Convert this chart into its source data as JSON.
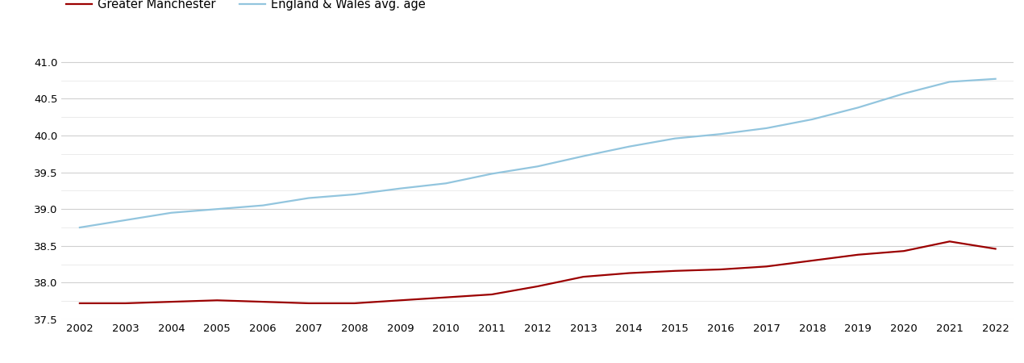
{
  "years": [
    2002,
    2003,
    2004,
    2005,
    2006,
    2007,
    2008,
    2009,
    2010,
    2011,
    2012,
    2013,
    2014,
    2015,
    2016,
    2017,
    2018,
    2019,
    2020,
    2021,
    2022
  ],
  "gm_values": [
    37.72,
    37.72,
    37.74,
    37.76,
    37.74,
    37.72,
    37.72,
    37.76,
    37.8,
    37.84,
    37.95,
    38.08,
    38.13,
    38.16,
    38.18,
    38.22,
    38.3,
    38.38,
    38.43,
    38.56,
    38.46
  ],
  "ew_values": [
    38.75,
    38.85,
    38.95,
    39.0,
    39.05,
    39.15,
    39.2,
    39.28,
    39.35,
    39.48,
    39.58,
    39.72,
    39.85,
    39.96,
    40.02,
    40.1,
    40.22,
    40.38,
    40.57,
    40.73,
    40.77
  ],
  "gm_color": "#9b0000",
  "ew_color": "#92C5DE",
  "gm_label": "Greater Manchester",
  "ew_label": "England & Wales avg. age",
  "ylim_min": 37.5,
  "ylim_max": 41.25,
  "yticks_major": [
    37.5,
    38.0,
    38.5,
    39.0,
    39.5,
    40.0,
    40.5,
    41.0
  ],
  "background_color": "#ffffff",
  "grid_color_major": "#d0d0d0",
  "grid_color_minor": "#e8e8e8",
  "line_width": 1.6,
  "legend_fontsize": 10.5,
  "tick_fontsize": 9.5
}
